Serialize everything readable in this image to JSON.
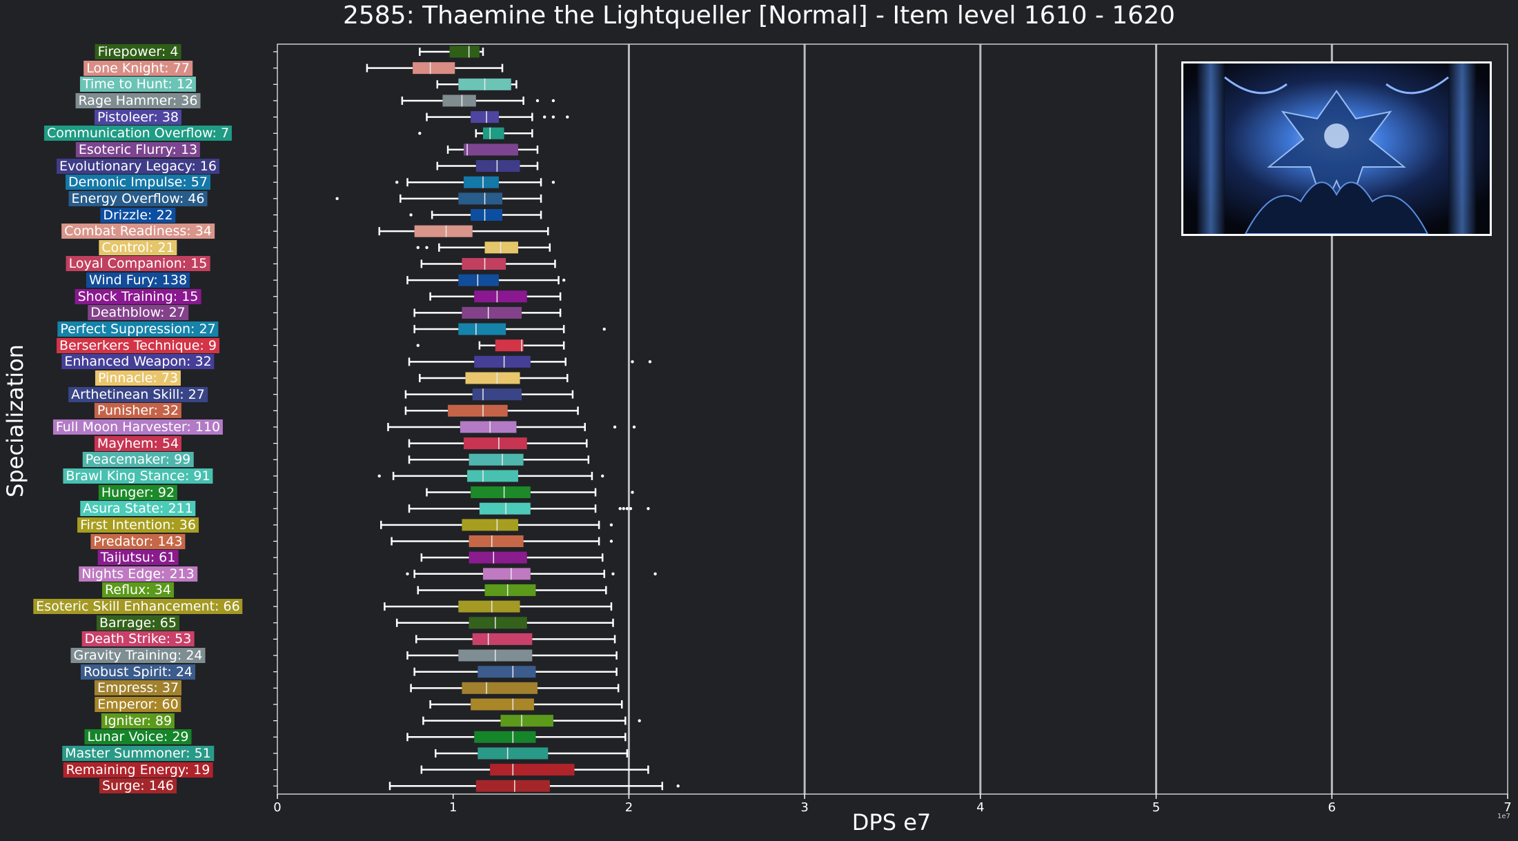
{
  "chart_data": {
    "type": "boxplot",
    "title": "2585: Thaemine the Lightqueller [Normal] - Item level 1610 - 1620",
    "xlabel": "DPS e7",
    "ylabel": "Specialization",
    "scale_note": "1e7",
    "xlim": [
      0,
      70000000
    ],
    "xticks": [
      0,
      10000000,
      20000000,
      30000000,
      40000000,
      50000000,
      60000000,
      70000000
    ],
    "xtick_labels": [
      "0",
      "1",
      "2",
      "3",
      "4",
      "5",
      "6",
      "7"
    ],
    "vertical_gridlines_at": [
      20000000,
      30000000,
      40000000,
      50000000,
      60000000
    ],
    "series": [
      {
        "label": "Firepower: 4",
        "color": "#2f5f17",
        "whisker_low": 8100000,
        "q1": 9800000,
        "median": 10900000,
        "q3": 11500000,
        "whisker_high": 11700000,
        "outliers": []
      },
      {
        "label": "Lone Knight: 77",
        "color": "#d98d85",
        "whisker_low": 5100000,
        "q1": 7700000,
        "median": 8700000,
        "q3": 10100000,
        "whisker_high": 12800000,
        "outliers": []
      },
      {
        "label": "Time to Hunt: 12",
        "color": "#6bc4b6",
        "whisker_low": 9100000,
        "q1": 10300000,
        "median": 11800000,
        "q3": 13300000,
        "whisker_high": 13600000,
        "outliers": []
      },
      {
        "label": "Rage Hammer: 36",
        "color": "#7f8d91",
        "whisker_low": 7100000,
        "q1": 9400000,
        "median": 10500000,
        "q3": 11300000,
        "whisker_high": 14000000,
        "outliers": [
          14800000,
          15700000
        ]
      },
      {
        "label": "Pistoleer: 38",
        "color": "#4e45a1",
        "whisker_low": 8500000,
        "q1": 11000000,
        "median": 11900000,
        "q3": 12600000,
        "whisker_high": 14500000,
        "outliers": [
          15200000,
          15700000,
          16500000
        ]
      },
      {
        "label": "Communication Overflow: 7",
        "color": "#1e9c84",
        "whisker_low": 11300000,
        "q1": 11700000,
        "median": 12100000,
        "q3": 12900000,
        "whisker_high": 14500000,
        "outliers": [
          8100000
        ]
      },
      {
        "label": "Esoteric Flurry: 13",
        "color": "#7d4590",
        "whisker_low": 9700000,
        "q1": 10600000,
        "median": 10800000,
        "q3": 13700000,
        "whisker_high": 14800000,
        "outliers": []
      },
      {
        "label": "Evolutionary Legacy: 16",
        "color": "#3f3c88",
        "whisker_low": 9100000,
        "q1": 11300000,
        "median": 12500000,
        "q3": 13800000,
        "whisker_high": 14800000,
        "outliers": []
      },
      {
        "label": "Demonic Impulse: 57",
        "color": "#1478a8",
        "whisker_low": 7400000,
        "q1": 10600000,
        "median": 11700000,
        "q3": 12600000,
        "whisker_high": 15000000,
        "outliers": [
          6800000,
          15700000
        ]
      },
      {
        "label": "Energy Overflow: 46",
        "color": "#285c8a",
        "whisker_low": 7000000,
        "q1": 10300000,
        "median": 11800000,
        "q3": 12800000,
        "whisker_high": 15000000,
        "outliers": [
          3400000
        ]
      },
      {
        "label": "Drizzle: 22",
        "color": "#0c4ea0",
        "whisker_low": 8800000,
        "q1": 11000000,
        "median": 11800000,
        "q3": 12800000,
        "whisker_high": 15000000,
        "outliers": [
          7600000
        ]
      },
      {
        "label": "Combat Readiness: 34",
        "color": "#d9958a",
        "whisker_low": 5800000,
        "q1": 7800000,
        "median": 9600000,
        "q3": 11100000,
        "whisker_high": 15400000,
        "outliers": []
      },
      {
        "label": "Control: 21",
        "color": "#e6c66a",
        "whisker_low": 9200000,
        "q1": 11800000,
        "median": 12700000,
        "q3": 13700000,
        "whisker_high": 15500000,
        "outliers": [
          8000000,
          8500000
        ]
      },
      {
        "label": "Loyal Companion: 15",
        "color": "#c2405f",
        "whisker_low": 8200000,
        "q1": 10500000,
        "median": 11800000,
        "q3": 13000000,
        "whisker_high": 15800000,
        "outliers": []
      },
      {
        "label": "Wind Fury: 138",
        "color": "#114d9a",
        "whisker_low": 7400000,
        "q1": 10300000,
        "median": 11400000,
        "q3": 12600000,
        "whisker_high": 16000000,
        "outliers": [
          16300000
        ]
      },
      {
        "label": "Shock Training: 15",
        "color": "#8a1890",
        "whisker_low": 8700000,
        "q1": 11200000,
        "median": 12500000,
        "q3": 14200000,
        "whisker_high": 16100000,
        "outliers": []
      },
      {
        "label": "Deathblow: 27",
        "color": "#83428a",
        "whisker_low": 7800000,
        "q1": 10500000,
        "median": 12000000,
        "q3": 13900000,
        "whisker_high": 16100000,
        "outliers": []
      },
      {
        "label": "Perfect Suppression: 27",
        "color": "#1583aa",
        "whisker_low": 7800000,
        "q1": 10300000,
        "median": 11300000,
        "q3": 13000000,
        "whisker_high": 16300000,
        "outliers": [
          18600000
        ]
      },
      {
        "label": "Berserkers Technique: 9",
        "color": "#d33447",
        "whisker_low": 11500000,
        "q1": 12400000,
        "median": 13900000,
        "q3": 14000000,
        "whisker_high": 16300000,
        "outliers": [
          8000000
        ]
      },
      {
        "label": "Enhanced Weapon: 32",
        "color": "#463f98",
        "whisker_low": 7500000,
        "q1": 11200000,
        "median": 12900000,
        "q3": 14400000,
        "whisker_high": 16400000,
        "outliers": [
          20200000,
          21200000
        ]
      },
      {
        "label": "Pinnacle: 73",
        "color": "#e9c66d",
        "whisker_low": 8100000,
        "q1": 10700000,
        "median": 12500000,
        "q3": 13800000,
        "whisker_high": 16500000,
        "outliers": []
      },
      {
        "label": "Arthetinean Skill: 27",
        "color": "#394587",
        "whisker_low": 7300000,
        "q1": 11100000,
        "median": 11700000,
        "q3": 13900000,
        "whisker_high": 16800000,
        "outliers": []
      },
      {
        "label": "Punisher: 32",
        "color": "#c56349",
        "whisker_low": 7300000,
        "q1": 9700000,
        "median": 11700000,
        "q3": 13100000,
        "whisker_high": 17100000,
        "outliers": []
      },
      {
        "label": "Full Moon Harvester: 110",
        "color": "#b37ac6",
        "whisker_low": 6300000,
        "q1": 10400000,
        "median": 12100000,
        "q3": 13600000,
        "whisker_high": 17500000,
        "outliers": [
          19200000,
          20300000
        ]
      },
      {
        "label": "Mayhem: 54",
        "color": "#c73552",
        "whisker_low": 7500000,
        "q1": 10600000,
        "median": 12600000,
        "q3": 14200000,
        "whisker_high": 17600000,
        "outliers": []
      },
      {
        "label": "Peacemaker: 99",
        "color": "#4fb6ad",
        "whisker_low": 7500000,
        "q1": 10900000,
        "median": 12800000,
        "q3": 14000000,
        "whisker_high": 17700000,
        "outliers": []
      },
      {
        "label": "Brawl King Stance: 91",
        "color": "#48c1b0",
        "whisker_low": 6600000,
        "q1": 10800000,
        "median": 11700000,
        "q3": 13700000,
        "whisker_high": 17900000,
        "outliers": [
          5800000,
          18500000
        ]
      },
      {
        "label": "Hunger: 92",
        "color": "#1c8a28",
        "whisker_low": 8500000,
        "q1": 11000000,
        "median": 12900000,
        "q3": 14400000,
        "whisker_high": 18100000,
        "outliers": [
          20200000
        ]
      },
      {
        "label": "Asura State: 211",
        "color": "#4dcbb9",
        "whisker_low": 7500000,
        "q1": 11500000,
        "median": 13000000,
        "q3": 14400000,
        "whisker_high": 18100000,
        "outliers": [
          19500000,
          19700000,
          19900000,
          20100000,
          21100000
        ]
      },
      {
        "label": "First Intention: 36",
        "color": "#a79e1f",
        "whisker_low": 5900000,
        "q1": 10500000,
        "median": 12500000,
        "q3": 13700000,
        "whisker_high": 18300000,
        "outliers": [
          19000000
        ]
      },
      {
        "label": "Predator: 143",
        "color": "#c66848",
        "whisker_low": 6500000,
        "q1": 10900000,
        "median": 12200000,
        "q3": 14000000,
        "whisker_high": 18300000,
        "outliers": [
          19000000
        ]
      },
      {
        "label": "Taijutsu: 61",
        "color": "#8a1c8e",
        "whisker_low": 8200000,
        "q1": 10900000,
        "median": 12300000,
        "q3": 14200000,
        "whisker_high": 18500000,
        "outliers": []
      },
      {
        "label": "Nights Edge: 213",
        "color": "#bf7ac2",
        "whisker_low": 7800000,
        "q1": 11700000,
        "median": 13300000,
        "q3": 14400000,
        "whisker_high": 18600000,
        "outliers": [
          7400000,
          19100000,
          21500000
        ]
      },
      {
        "label": "Reflux: 34",
        "color": "#5b9a1a",
        "whisker_low": 8000000,
        "q1": 11800000,
        "median": 13100000,
        "q3": 14700000,
        "whisker_high": 18700000,
        "outliers": []
      },
      {
        "label": "Esoteric Skill Enhancement: 66",
        "color": "#a39923",
        "whisker_low": 6100000,
        "q1": 10300000,
        "median": 12200000,
        "q3": 13800000,
        "whisker_high": 19000000,
        "outliers": []
      },
      {
        "label": "Barrage: 65",
        "color": "#34621c",
        "whisker_low": 6800000,
        "q1": 10900000,
        "median": 12400000,
        "q3": 14200000,
        "whisker_high": 19100000,
        "outliers": []
      },
      {
        "label": "Death Strike: 53",
        "color": "#c9416a",
        "whisker_low": 7900000,
        "q1": 11100000,
        "median": 12000000,
        "q3": 14500000,
        "whisker_high": 19200000,
        "outliers": []
      },
      {
        "label": "Gravity Training: 24",
        "color": "#7f8e92",
        "whisker_low": 7400000,
        "q1": 10300000,
        "median": 12400000,
        "q3": 14500000,
        "whisker_high": 19300000,
        "outliers": []
      },
      {
        "label": "Robust Spirit: 24",
        "color": "#3b5c8c",
        "whisker_low": 7800000,
        "q1": 11400000,
        "median": 13400000,
        "q3": 14700000,
        "whisker_high": 19300000,
        "outliers": []
      },
      {
        "label": "Empress: 37",
        "color": "#a1812e",
        "whisker_low": 7600000,
        "q1": 10500000,
        "median": 11900000,
        "q3": 14800000,
        "whisker_high": 19400000,
        "outliers": []
      },
      {
        "label": "Emperor: 60",
        "color": "#a98628",
        "whisker_low": 8700000,
        "q1": 11000000,
        "median": 13400000,
        "q3": 14600000,
        "whisker_high": 19600000,
        "outliers": []
      },
      {
        "label": "Igniter: 89",
        "color": "#5c9a1c",
        "whisker_low": 8300000,
        "q1": 12700000,
        "median": 13900000,
        "q3": 15700000,
        "whisker_high": 19800000,
        "outliers": [
          20600000
        ]
      },
      {
        "label": "Lunar Voice: 29",
        "color": "#15852a",
        "whisker_low": 7400000,
        "q1": 11200000,
        "median": 13400000,
        "q3": 14700000,
        "whisker_high": 19800000,
        "outliers": []
      },
      {
        "label": "Master Summoner: 51",
        "color": "#2a9a88",
        "whisker_low": 9000000,
        "q1": 11400000,
        "median": 13100000,
        "q3": 15400000,
        "whisker_high": 19900000,
        "outliers": []
      },
      {
        "label": "Remaining Energy: 19",
        "color": "#b0232b",
        "whisker_low": 8200000,
        "q1": 12100000,
        "median": 13400000,
        "q3": 16900000,
        "whisker_high": 21100000,
        "outliers": []
      },
      {
        "label": "Surge: 146",
        "color": "#a5262a",
        "whisker_low": 6400000,
        "q1": 11300000,
        "median": 13500000,
        "q3": 15500000,
        "whisker_high": 21900000,
        "outliers": [
          22800000
        ]
      }
    ]
  },
  "boss_image": {
    "description_icon": "boss-portrait-image"
  }
}
